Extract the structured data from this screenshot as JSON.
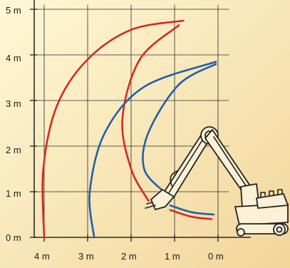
{
  "colors": {
    "background_top": "#fff7d6",
    "background_bottom": "#f2d69a",
    "grid": "#2a2a2a",
    "red_curve": "#d42a22",
    "blue_curve": "#1f5fa8",
    "machine_fill": "#fbf1d6",
    "machine_stroke": "#222222"
  },
  "axes": {
    "y_ticks": [
      "5 m",
      "4 m",
      "3 m",
      "2 m",
      "1 m",
      "0 m"
    ],
    "x_ticks": [
      "4 m",
      "3 m",
      "2 m",
      "1 m",
      "0 m"
    ]
  },
  "chart_data": {
    "type": "line",
    "x_axis_reversed": true,
    "xlim": [
      4.3,
      -0.3
    ],
    "ylim": [
      0,
      5.2
    ],
    "series": [
      {
        "color": "red",
        "outer": true,
        "x": [
          4.0,
          4.02,
          3.7,
          3.0,
          2.0,
          0.8
        ],
        "y": [
          0.0,
          1.5,
          2.9,
          3.9,
          4.55,
          4.75
        ]
      },
      {
        "color": "red",
        "outer": false,
        "x": [
          0.9,
          1.8,
          2.2,
          2.0,
          1.6
        ],
        "y": [
          4.65,
          3.9,
          2.6,
          1.5,
          0.8
        ]
      },
      {
        "color": "blue",
        "outer": true,
        "x": [
          2.85,
          2.95,
          2.6,
          1.7,
          0.05
        ],
        "y": [
          0.0,
          1.0,
          2.3,
          3.3,
          3.85
        ]
      },
      {
        "color": "blue",
        "outer": false,
        "x": [
          0.05,
          0.9,
          1.6,
          1.7,
          1.25
        ],
        "y": [
          3.8,
          3.35,
          2.3,
          1.5,
          1.0
        ]
      },
      {
        "color": "red",
        "outer": false,
        "x": [
          1.1,
          0.6,
          0.15
        ],
        "y": [
          0.6,
          0.45,
          0.4
        ]
      },
      {
        "color": "blue",
        "outer": false,
        "x": [
          1.1,
          0.6,
          0.1
        ],
        "y": [
          0.7,
          0.55,
          0.5
        ]
      }
    ]
  }
}
